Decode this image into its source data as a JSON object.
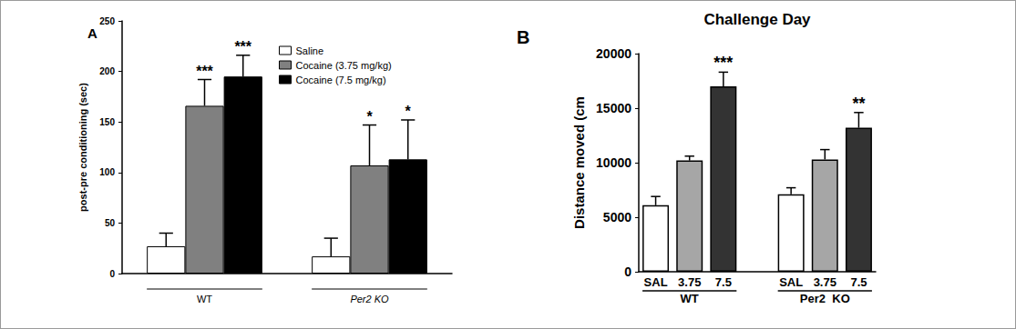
{
  "chart_data": [
    {
      "type": "bar",
      "panel_label": "A",
      "ylabel": "post-pre conditioning (sec)",
      "categories": [
        "WT",
        "Per2 KO"
      ],
      "series": [
        {
          "name": "Saline",
          "color": "#ffffff",
          "values": [
            27,
            17
          ],
          "errors": [
            13,
            18
          ],
          "annotations": [
            null,
            null
          ]
        },
        {
          "name": "Cocaine (3.75 mg/kg)",
          "color": "#808080",
          "values": [
            166,
            107
          ],
          "errors": [
            26,
            40
          ],
          "annotations": [
            "***",
            "*"
          ]
        },
        {
          "name": "Cocaine (7.5 mg/kg)",
          "color": "#000000",
          "values": [
            195,
            113
          ],
          "errors": [
            21,
            39
          ],
          "annotations": [
            "***",
            "*"
          ]
        }
      ],
      "ylim": [
        0,
        250
      ],
      "yticks": [
        0,
        50,
        100,
        150,
        200,
        250
      ],
      "legend": "upper right"
    },
    {
      "type": "bar",
      "panel_label": "B",
      "title": "Challenge Day",
      "ylabel": "Distance moved (cm",
      "groups": [
        {
          "name": "WT",
          "categories": [
            "SAL",
            "3.75",
            "7.5"
          ],
          "values": [
            6100,
            10200,
            17000
          ],
          "errors": [
            800,
            400,
            1300
          ],
          "annotations": [
            null,
            null,
            "***"
          ]
        },
        {
          "name": "Per2  KO",
          "categories": [
            "SAL",
            "3.75",
            "7.5"
          ],
          "values": [
            7100,
            10300,
            13200
          ],
          "errors": [
            600,
            900,
            1400
          ],
          "annotations": [
            null,
            null,
            "**"
          ]
        }
      ],
      "colors": [
        "#ffffff",
        "#a6a6a6",
        "#333333"
      ],
      "ylim": [
        0,
        20000
      ],
      "yticks": [
        0,
        5000,
        10000,
        15000,
        20000
      ]
    }
  ]
}
